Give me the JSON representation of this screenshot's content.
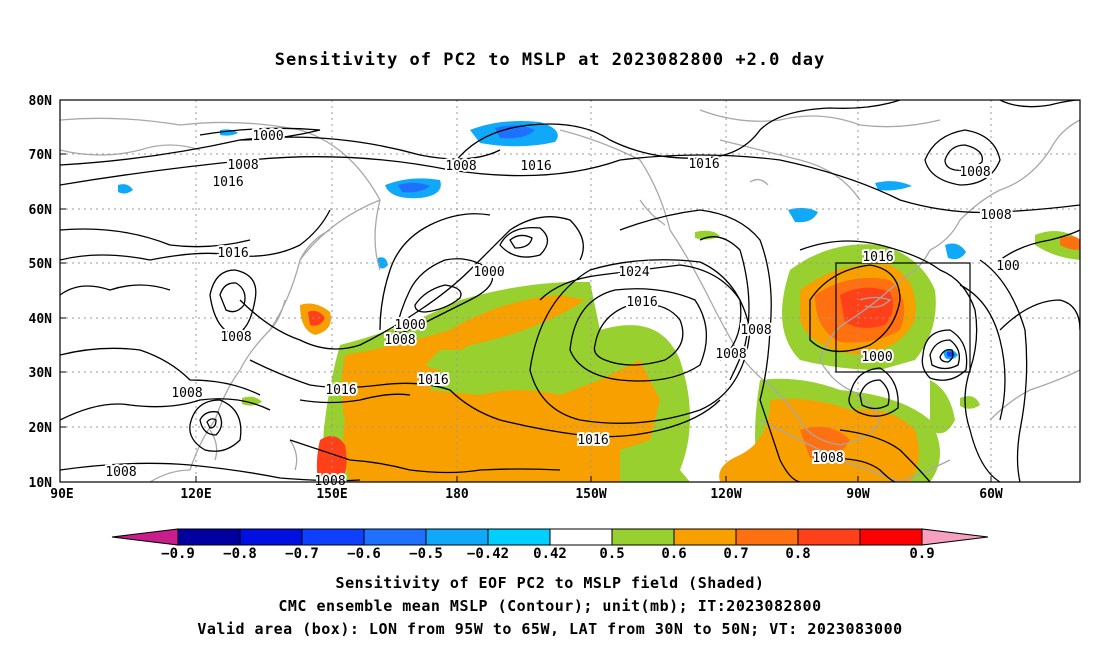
{
  "title": "Sensitivity of PC2 to MSLP at 2023082800 +2.0 day",
  "map": {
    "lat_labels": [
      "80N",
      "70N",
      "60N",
      "50N",
      "40N",
      "30N",
      "20N",
      "10N"
    ],
    "lon_labels": [
      "90E",
      "120E",
      "150E",
      "180",
      "150W",
      "120W",
      "90W",
      "60W"
    ],
    "valid_box": {
      "lon_from": "95W",
      "lon_to": "65W",
      "lat_from": "30N",
      "lat_to": "50N"
    }
  },
  "contour_labels": [
    {
      "text": "1000"
    },
    {
      "text": "1008"
    },
    {
      "text": "1016"
    },
    {
      "text": "1016"
    },
    {
      "text": "1008"
    },
    {
      "text": "1008"
    },
    {
      "text": "1008"
    },
    {
      "text": "1016"
    },
    {
      "text": "1008"
    },
    {
      "text": "1008"
    },
    {
      "text": "1016"
    },
    {
      "text": "1000"
    },
    {
      "text": "1000"
    },
    {
      "text": "1008"
    },
    {
      "text": "1016"
    },
    {
      "text": "1016"
    },
    {
      "text": "1024"
    },
    {
      "text": "1016"
    },
    {
      "text": "1008"
    },
    {
      "text": "1008"
    },
    {
      "text": "1016"
    },
    {
      "text": "1008"
    },
    {
      "text": "1016"
    },
    {
      "text": "1000"
    },
    {
      "text": "1008"
    },
    {
      "text": "1008"
    },
    {
      "text": "100"
    }
  ],
  "colorbar": {
    "labels": [
      "-0.9",
      "-0.8",
      "-0.7",
      "-0.6",
      "-0.5",
      "-0.42",
      "0.42",
      "0.5",
      "0.6",
      "0.7",
      "0.8",
      "0.9"
    ],
    "colors": [
      "#0000a0",
      "#0010e0",
      "#1040ff",
      "#2070ff",
      "#10a8f8",
      "#00d0ff",
      "#ffffff",
      "#98d030",
      "#f8a000",
      "#ff7010",
      "#ff4018",
      "#ff0000"
    ],
    "low_end_color": "#c81e8c",
    "high_end_color": "#f8a0c0"
  },
  "caption_lines": [
    "Sensitivity of EOF PC2 to MSLP field (Shaded)",
    "CMC ensemble mean MSLP (Contour); unit(mb); IT:2023082800",
    "Valid area (box): LON from 95W to 65W, LAT from 30N to 50N; VT: 2023083000"
  ]
}
